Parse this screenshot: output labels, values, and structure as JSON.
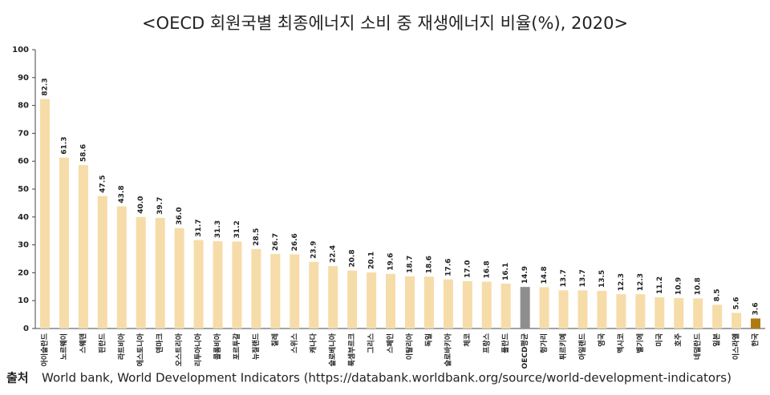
{
  "chart_data": {
    "type": "bar",
    "title": "<OECD 회원국별 최종에너지 소비 중 재생에너지 비율(%), 2020>",
    "categories": [
      "아이슬란드",
      "노르웨이",
      "스웨덴",
      "핀란드",
      "라트비아",
      "에스토니아",
      "덴마크",
      "오스트리아",
      "리투아니아",
      "콜롬비아",
      "포르투갈",
      "뉴질랜드",
      "칠레",
      "스위스",
      "캐나다",
      "슬로베니아",
      "룩셈부르크",
      "그리스",
      "스페인",
      "이탈리아",
      "독일",
      "슬로바키아",
      "체코",
      "프랑스",
      "폴란드",
      "OECD평균",
      "헝가리",
      "튀르키예",
      "아일랜드",
      "영국",
      "멕시코",
      "벨기에",
      "미국",
      "호주",
      "네덜란드",
      "일본",
      "이스라엘",
      "한국"
    ],
    "values": [
      82.3,
      61.3,
      58.6,
      47.5,
      43.8,
      40.0,
      39.7,
      36.0,
      31.7,
      31.3,
      31.2,
      28.5,
      26.7,
      26.6,
      23.9,
      22.4,
      20.8,
      20.1,
      19.6,
      18.7,
      18.6,
      17.6,
      17.0,
      16.8,
      16.1,
      14.9,
      14.8,
      13.7,
      13.7,
      13.5,
      12.3,
      12.3,
      11.2,
      10.9,
      10.8,
      8.5,
      5.6,
      3.6
    ],
    "value_labels": [
      "82.3",
      "61.3",
      "58.6",
      "47.5",
      "43.8",
      "40.0",
      "39.7",
      "36.0",
      "31.7",
      "31.3",
      "31.2",
      "28.5",
      "26.7",
      "26.6",
      "23.9",
      "22.4",
      "20.8",
      "20.1",
      "19.6",
      "18.7",
      "18.6",
      "17.6",
      "17.0",
      "16.8",
      "16.1",
      "14.9",
      "14.8",
      "13.7",
      "13.7",
      "13.5",
      "12.3",
      "12.3",
      "11.2",
      "10.9",
      "10.8",
      "8.5",
      "5.6",
      "3.6"
    ],
    "colors": [
      "#f6dca8",
      "#f6dca8",
      "#f6dca8",
      "#f6dca8",
      "#f6dca8",
      "#f6dca8",
      "#f6dca8",
      "#f6dca8",
      "#f6dca8",
      "#f6dca8",
      "#f6dca8",
      "#f6dca8",
      "#f6dca8",
      "#f6dca8",
      "#f6dca8",
      "#f6dca8",
      "#f6dca8",
      "#f6dca8",
      "#f6dca8",
      "#f6dca8",
      "#f6dca8",
      "#f6dca8",
      "#f6dca8",
      "#f6dca8",
      "#f6dca8",
      "#8e8e8e",
      "#f6dca8",
      "#f6dca8",
      "#f6dca8",
      "#f6dca8",
      "#f6dca8",
      "#f6dca8",
      "#f6dca8",
      "#f6dca8",
      "#f6dca8",
      "#f6dca8",
      "#f6dca8",
      "#b07a12"
    ],
    "ylim": [
      0,
      100
    ],
    "yticks": [
      0,
      10,
      20,
      30,
      40,
      50,
      60,
      70,
      80,
      90,
      100
    ],
    "grid": false,
    "source": {
      "label": "출처",
      "text": "World bank, World Development Indicators (https://databank.worldbank.org/source/world-development-indicators)"
    }
  }
}
